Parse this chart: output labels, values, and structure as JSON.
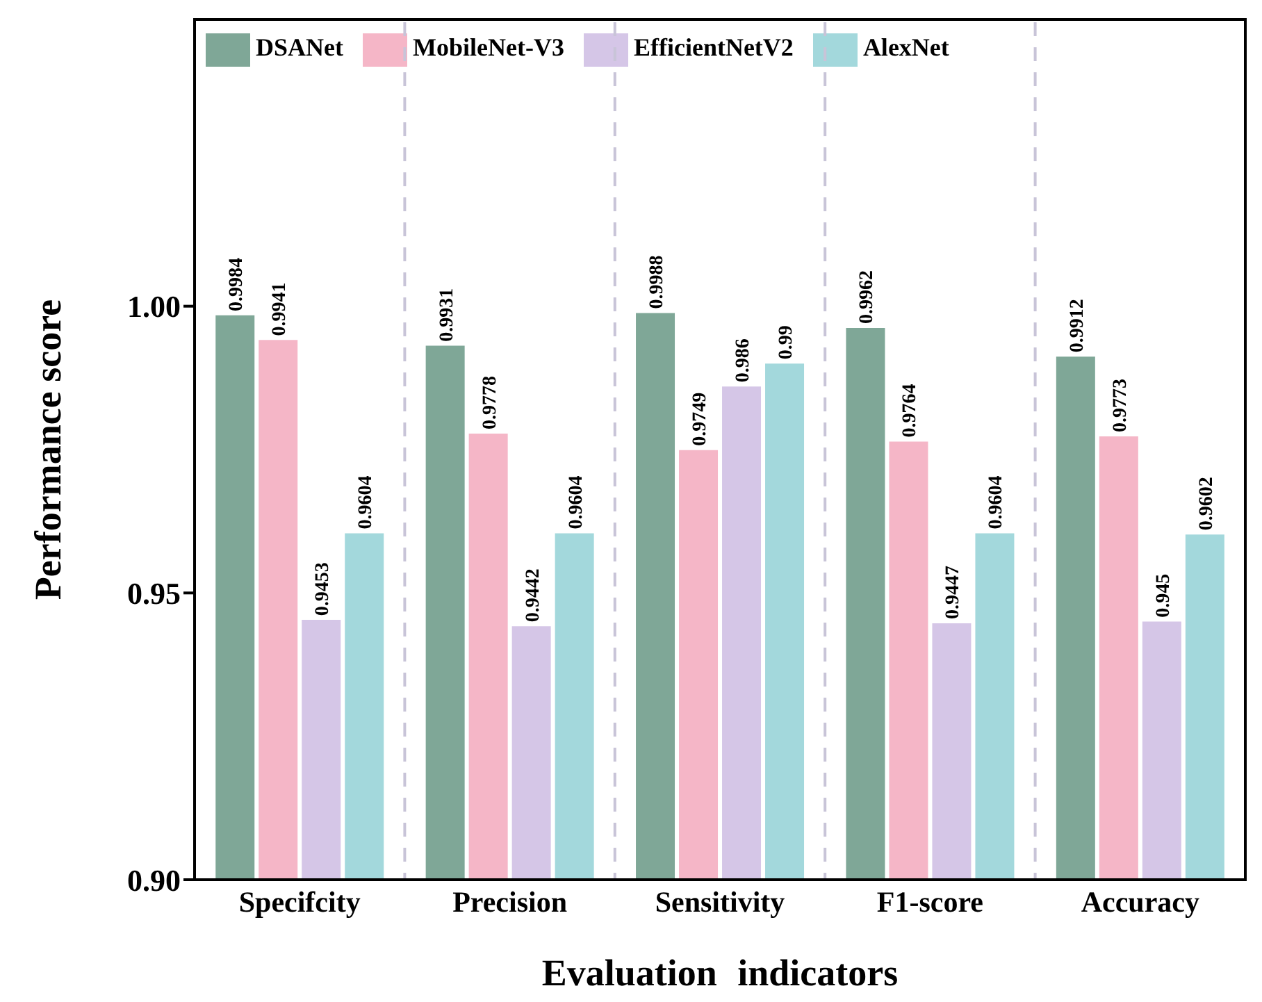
{
  "chart_data": {
    "type": "bar",
    "xlabel": "Evaluation indicators",
    "ylabel": "Performance score",
    "categories": [
      "Specifcity",
      "Precision",
      "Sensitivity",
      "F1-score",
      "Accuracy"
    ],
    "series": [
      {
        "name": "DSANet",
        "color": "#7fa797",
        "values": [
          0.9984,
          0.9931,
          0.9988,
          0.9962,
          0.9912
        ]
      },
      {
        "name": "MobileNet-V3",
        "color": "#f5b6c7",
        "values": [
          0.9941,
          0.9778,
          0.9749,
          0.9764,
          0.9773
        ]
      },
      {
        "name": "EfficientNetV2",
        "color": "#d5c6e7",
        "values": [
          0.9453,
          0.9442,
          0.986,
          0.9447,
          0.945
        ]
      },
      {
        "name": "AlexNet",
        "color": "#a3d8dc",
        "values": [
          0.9604,
          0.9604,
          0.99,
          0.9604,
          0.9602
        ]
      }
    ],
    "ylim": [
      0.9,
      1.05
    ],
    "yticks": [
      {
        "value": 0.9,
        "label": "0.90"
      },
      {
        "value": 0.95,
        "label": "0.95"
      },
      {
        "value": 1,
        "label": "1.00"
      }
    ],
    "data_labels": true,
    "legend": "top"
  }
}
